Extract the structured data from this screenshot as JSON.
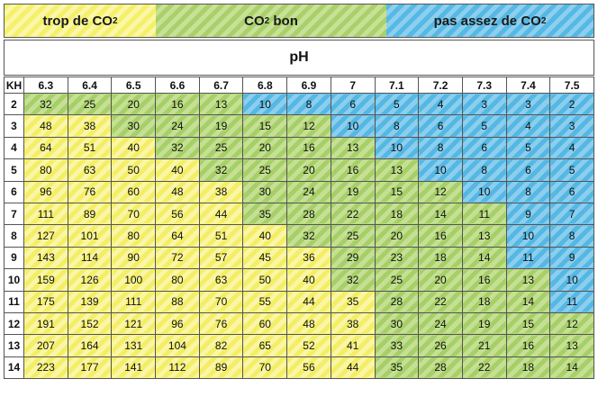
{
  "legend": {
    "too_much": "trop de CO",
    "good": "CO",
    "good_suffix": " bon",
    "not_enough": "pas assez de CO",
    "subscript": "2"
  },
  "axis_title": "pH",
  "corner_label": "KH",
  "colors": {
    "too_much": "#f3ee66",
    "good": "#a7cf68",
    "not_enough": "#55b7e3"
  },
  "chart_data": {
    "type": "table",
    "title": "pH",
    "row_header": "KH",
    "columns": [
      "6.3",
      "6.4",
      "6.5",
      "6.6",
      "6.7",
      "6.8",
      "6.9",
      "7",
      "7.1",
      "7.2",
      "7.3",
      "7.4",
      "7.5"
    ],
    "rows": [
      {
        "kh": "2",
        "values": [
          "32",
          "25",
          "20",
          "16",
          "13",
          "10",
          "8",
          "6",
          "5",
          "4",
          "3",
          "3",
          "2"
        ],
        "zones": [
          "g",
          "g",
          "g",
          "g",
          "g",
          "b",
          "b",
          "b",
          "b",
          "b",
          "b",
          "b",
          "b"
        ]
      },
      {
        "kh": "3",
        "values": [
          "48",
          "38",
          "30",
          "24",
          "19",
          "15",
          "12",
          "10",
          "8",
          "6",
          "5",
          "4",
          "3"
        ],
        "zones": [
          "y",
          "y",
          "g",
          "g",
          "g",
          "g",
          "g",
          "b",
          "b",
          "b",
          "b",
          "b",
          "b"
        ]
      },
      {
        "kh": "4",
        "values": [
          "64",
          "51",
          "40",
          "32",
          "25",
          "20",
          "16",
          "13",
          "10",
          "8",
          "6",
          "5",
          "4"
        ],
        "zones": [
          "y",
          "y",
          "y",
          "g",
          "g",
          "g",
          "g",
          "g",
          "b",
          "b",
          "b",
          "b",
          "b"
        ]
      },
      {
        "kh": "5",
        "values": [
          "80",
          "63",
          "50",
          "40",
          "32",
          "25",
          "20",
          "16",
          "13",
          "10",
          "8",
          "6",
          "5"
        ],
        "zones": [
          "y",
          "y",
          "y",
          "y",
          "g",
          "g",
          "g",
          "g",
          "g",
          "b",
          "b",
          "b",
          "b"
        ]
      },
      {
        "kh": "6",
        "values": [
          "96",
          "76",
          "60",
          "48",
          "38",
          "30",
          "24",
          "19",
          "15",
          "12",
          "10",
          "8",
          "6"
        ],
        "zones": [
          "y",
          "y",
          "y",
          "y",
          "y",
          "g",
          "g",
          "g",
          "g",
          "g",
          "b",
          "b",
          "b"
        ]
      },
      {
        "kh": "7",
        "values": [
          "111",
          "89",
          "70",
          "56",
          "44",
          "35",
          "28",
          "22",
          "18",
          "14",
          "11",
          "9",
          "7"
        ],
        "zones": [
          "y",
          "y",
          "y",
          "y",
          "y",
          "g",
          "g",
          "g",
          "g",
          "g",
          "g",
          "b",
          "b"
        ]
      },
      {
        "kh": "8",
        "values": [
          "127",
          "101",
          "80",
          "64",
          "51",
          "40",
          "32",
          "25",
          "20",
          "16",
          "13",
          "10",
          "8"
        ],
        "zones": [
          "y",
          "y",
          "y",
          "y",
          "y",
          "y",
          "g",
          "g",
          "g",
          "g",
          "g",
          "b",
          "b"
        ]
      },
      {
        "kh": "9",
        "values": [
          "143",
          "114",
          "90",
          "72",
          "57",
          "45",
          "36",
          "29",
          "23",
          "18",
          "14",
          "11",
          "9"
        ],
        "zones": [
          "y",
          "y",
          "y",
          "y",
          "y",
          "y",
          "y",
          "g",
          "g",
          "g",
          "g",
          "b",
          "b"
        ]
      },
      {
        "kh": "10",
        "values": [
          "159",
          "126",
          "100",
          "80",
          "63",
          "50",
          "40",
          "32",
          "25",
          "20",
          "16",
          "13",
          "10"
        ],
        "zones": [
          "y",
          "y",
          "y",
          "y",
          "y",
          "y",
          "y",
          "g",
          "g",
          "g",
          "g",
          "g",
          "b"
        ]
      },
      {
        "kh": "11",
        "values": [
          "175",
          "139",
          "111",
          "88",
          "70",
          "55",
          "44",
          "35",
          "28",
          "22",
          "18",
          "14",
          "11"
        ],
        "zones": [
          "y",
          "y",
          "y",
          "y",
          "y",
          "y",
          "y",
          "y",
          "g",
          "g",
          "g",
          "g",
          "b"
        ]
      },
      {
        "kh": "12",
        "values": [
          "191",
          "152",
          "121",
          "96",
          "76",
          "60",
          "48",
          "38",
          "30",
          "24",
          "19",
          "15",
          "12"
        ],
        "zones": [
          "y",
          "y",
          "y",
          "y",
          "y",
          "y",
          "y",
          "y",
          "g",
          "g",
          "g",
          "g",
          "g"
        ]
      },
      {
        "kh": "13",
        "values": [
          "207",
          "164",
          "131",
          "104",
          "82",
          "65",
          "52",
          "41",
          "33",
          "26",
          "21",
          "16",
          "13"
        ],
        "zones": [
          "y",
          "y",
          "y",
          "y",
          "y",
          "y",
          "y",
          "y",
          "g",
          "g",
          "g",
          "g",
          "g"
        ]
      },
      {
        "kh": "14",
        "values": [
          "223",
          "177",
          "141",
          "112",
          "89",
          "70",
          "56",
          "44",
          "35",
          "28",
          "22",
          "18",
          "14"
        ],
        "zones": [
          "y",
          "y",
          "y",
          "y",
          "y",
          "y",
          "y",
          "y",
          "g",
          "g",
          "g",
          "g",
          "g"
        ]
      }
    ]
  }
}
